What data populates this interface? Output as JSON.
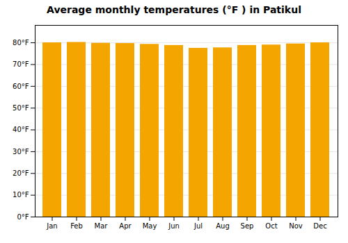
{
  "chart_data": {
    "type": "bar",
    "title": "Average monthly temperatures (°F ) in Patikul",
    "categories": [
      "Jan",
      "Feb",
      "Mar",
      "Apr",
      "May",
      "Jun",
      "Jul",
      "Aug",
      "Sep",
      "Oct",
      "Nov",
      "Dec"
    ],
    "values": [
      80.0,
      80.2,
      79.8,
      79.7,
      79.3,
      78.8,
      77.5,
      77.7,
      78.8,
      79.0,
      79.5,
      80.0
    ],
    "color": "#F5A500",
    "ylim": [
      0,
      88
    ],
    "yticks": [
      {
        "value": 0,
        "label": "0°F"
      },
      {
        "value": 10,
        "label": "10°F"
      },
      {
        "value": 20,
        "label": "20°F"
      },
      {
        "value": 30,
        "label": "30°F"
      },
      {
        "value": 40,
        "label": "40°F"
      },
      {
        "value": 50,
        "label": "50°F"
      },
      {
        "value": 60,
        "label": "60°F"
      },
      {
        "value": 70,
        "label": "70°F"
      },
      {
        "value": 80,
        "label": "80°F"
      }
    ],
    "grid": true
  }
}
